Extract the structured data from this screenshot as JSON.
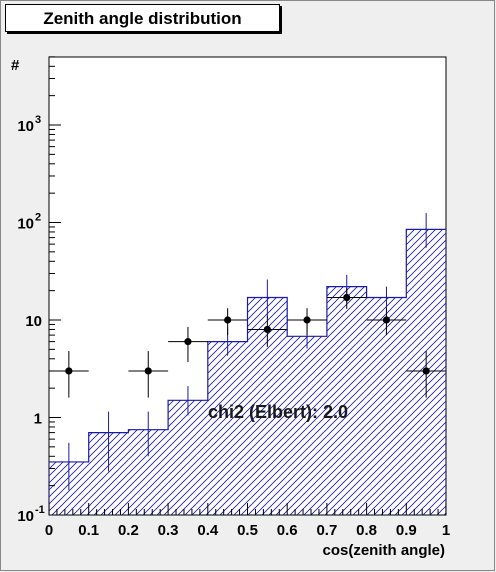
{
  "chart_data": {
    "type": "histogram",
    "title": "Zenith angle distribution",
    "xlabel": "cos(zenith angle)",
    "ylabel": "#",
    "xlim": [
      0,
      1
    ],
    "ylim": [
      0.1,
      5000
    ],
    "yscale": "log",
    "x_ticks": [
      "0",
      "0.1",
      "0.2",
      "0.3",
      "0.4",
      "0.5",
      "0.6",
      "0.7",
      "0.8",
      "0.9",
      "1"
    ],
    "y_ticks": [
      {
        "value": 0.1,
        "base": "10",
        "exp": "-1"
      },
      {
        "value": 1,
        "base": "1",
        "exp": ""
      },
      {
        "value": 10,
        "base": "10",
        "exp": ""
      },
      {
        "value": 100,
        "base": "10",
        "exp": "2"
      },
      {
        "value": 1000,
        "base": "10",
        "exp": "3"
      }
    ],
    "bin_edges": [
      0,
      0.1,
      0.2,
      0.3,
      0.4,
      0.5,
      0.6,
      0.7,
      0.8,
      0.9,
      1.0
    ],
    "series": [
      {
        "kind": "simulation-histogram",
        "color": "#1a1aa8",
        "fill": "hatched",
        "values": [
          0.35,
          0.7,
          0.75,
          1.5,
          6.0,
          17.0,
          6.8,
          22.0,
          17.0,
          85.0
        ],
        "errors_low": [
          0.17,
          0.42,
          0.35,
          0.45,
          1.7,
          6.5,
          1.7,
          6.8,
          4.5,
          30.0
        ],
        "errors_high": [
          0.2,
          0.45,
          0.4,
          0.6,
          2.2,
          9.0,
          2.2,
          7.0,
          5.0,
          40.0
        ]
      },
      {
        "kind": "data-points",
        "color": "#000000",
        "x": [
          0.05,
          0.25,
          0.35,
          0.45,
          0.55,
          0.65,
          0.75,
          0.85,
          0.95
        ],
        "y": [
          3.0,
          3.0,
          6.0,
          10.0,
          8.0,
          10.0,
          17.0,
          10.0,
          3.0
        ],
        "errors_low": [
          1.4,
          1.4,
          2.3,
          3.0,
          2.7,
          3.0,
          4.0,
          3.0,
          1.4
        ],
        "errors_high": [
          1.8,
          1.8,
          2.5,
          3.2,
          2.9,
          3.2,
          4.2,
          3.2,
          1.8
        ]
      }
    ],
    "annotation": "chi2 (Elbert): 2.0"
  }
}
